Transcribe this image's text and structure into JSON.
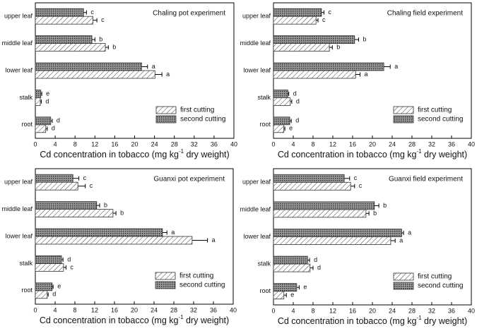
{
  "chart_data": [
    {
      "type": "bar",
      "orientation": "horizontal",
      "title": "Chaling pot experiment",
      "xlabel": [
        "Cd concentration in tobacco (mg kg",
        "-1",
        " dry weight)"
      ],
      "categories": [
        "upper leaf",
        "middle leaf",
        "lower leaf",
        "stalk",
        "root"
      ],
      "series": [
        {
          "name": "first cutting",
          "pattern": "hatch",
          "values": [
            11.6,
            14.1,
            24.1,
            1.0,
            2.1
          ],
          "errors": [
            0.8,
            0.6,
            1.4,
            0.2,
            0.3
          ],
          "labels": [
            "c",
            "b",
            "a",
            "d",
            "d"
          ]
        },
        {
          "name": "second cutting",
          "pattern": "dots",
          "values": [
            9.7,
            11.4,
            21.4,
            1.1,
            3.1
          ],
          "errors": [
            0.6,
            0.6,
            1.2,
            0.2,
            0.3
          ],
          "labels": [
            "c",
            "b",
            "a",
            "e",
            "d"
          ]
        }
      ],
      "xlim": [
        0,
        40
      ],
      "xticks": [
        0,
        4,
        8,
        12,
        16,
        20,
        24,
        28,
        32,
        36,
        40
      ],
      "legend": "lower right"
    },
    {
      "type": "bar",
      "orientation": "horizontal",
      "title": "Chaling field experiment",
      "xlabel": [
        "Cd concentration in tobacco (mg kg",
        "-1",
        " dry weight)"
      ],
      "categories": [
        "upper leaf",
        "middle leaf",
        "lower leaf",
        "stalk",
        "root"
      ],
      "series": [
        {
          "name": "first cutting",
          "pattern": "hatch",
          "values": [
            8.6,
            11.3,
            16.6,
            3.4,
            2.1
          ],
          "errors": [
            0.4,
            0.6,
            0.9,
            0.3,
            0.2
          ],
          "labels": [
            "c",
            "b",
            "a",
            "d",
            "e"
          ]
        },
        {
          "name": "second cutting",
          "pattern": "dots",
          "values": [
            9.7,
            16.4,
            22.3,
            2.9,
            3.3
          ],
          "errors": [
            0.5,
            0.8,
            1.3,
            0.2,
            0.3
          ],
          "labels": [
            "c",
            "b",
            "a",
            "d",
            "d"
          ]
        }
      ],
      "xlim": [
        0,
        40
      ],
      "xticks": [
        0,
        4,
        8,
        12,
        16,
        20,
        24,
        28,
        32,
        36,
        40
      ],
      "legend": "lower right"
    },
    {
      "type": "bar",
      "orientation": "horizontal",
      "title": "Guanxi pot experiment",
      "xlabel": [
        "Cd concentration in tobacco (mg kg",
        "-1",
        " dry weight)"
      ],
      "categories": [
        "upper leaf",
        "middle leaf",
        "lower leaf",
        "stalk",
        "root"
      ],
      "series": [
        {
          "name": "first cutting",
          "pattern": "hatch",
          "values": [
            8.6,
            15.7,
            31.7,
            5.7,
            2.4
          ],
          "errors": [
            1.5,
            0.6,
            3.1,
            0.5,
            0.2
          ],
          "labels": [
            "c",
            "b",
            "a",
            "c",
            "d"
          ]
        },
        {
          "name": "second cutting",
          "pattern": "dots",
          "values": [
            7.6,
            12.4,
            25.7,
            5.3,
            3.4
          ],
          "errors": [
            1.2,
            0.6,
            0.9,
            0.3,
            0.2
          ],
          "labels": [
            "c",
            "b",
            "a",
            "d",
            "e"
          ]
        }
      ],
      "xlim": [
        0,
        40
      ],
      "xticks": [
        0,
        4,
        8,
        12,
        16,
        20,
        24,
        28,
        32,
        36,
        40
      ],
      "legend": "lower right"
    },
    {
      "type": "bar",
      "orientation": "horizontal",
      "title": "Guanxi field experiment",
      "xlabel": [
        "Cd concentration in tobacco (mg kg",
        "-1",
        " dry weight)"
      ],
      "categories": [
        "upper leaf",
        "middle leaf",
        "lower leaf",
        "stalk",
        "root"
      ],
      "series": [
        {
          "name": "first cutting",
          "pattern": "hatch",
          "values": [
            15.6,
            18.7,
            23.7,
            7.4,
            2.1
          ],
          "errors": [
            0.8,
            0.6,
            0.9,
            0.6,
            0.5
          ],
          "labels": [
            "c",
            "b",
            "a",
            "d",
            "e"
          ]
        },
        {
          "name": "second cutting",
          "pattern": "dots",
          "values": [
            14.3,
            20.4,
            25.9,
            6.9,
            4.7
          ],
          "errors": [
            1.1,
            0.9,
            0.4,
            0.4,
            0.5
          ],
          "labels": [
            "c",
            "b",
            "a",
            "d",
            "e"
          ]
        }
      ],
      "xlim": [
        0,
        40
      ],
      "xticks": [
        0,
        4,
        8,
        12,
        16,
        20,
        24,
        28,
        32,
        36,
        40
      ],
      "legend": "lower right"
    }
  ]
}
